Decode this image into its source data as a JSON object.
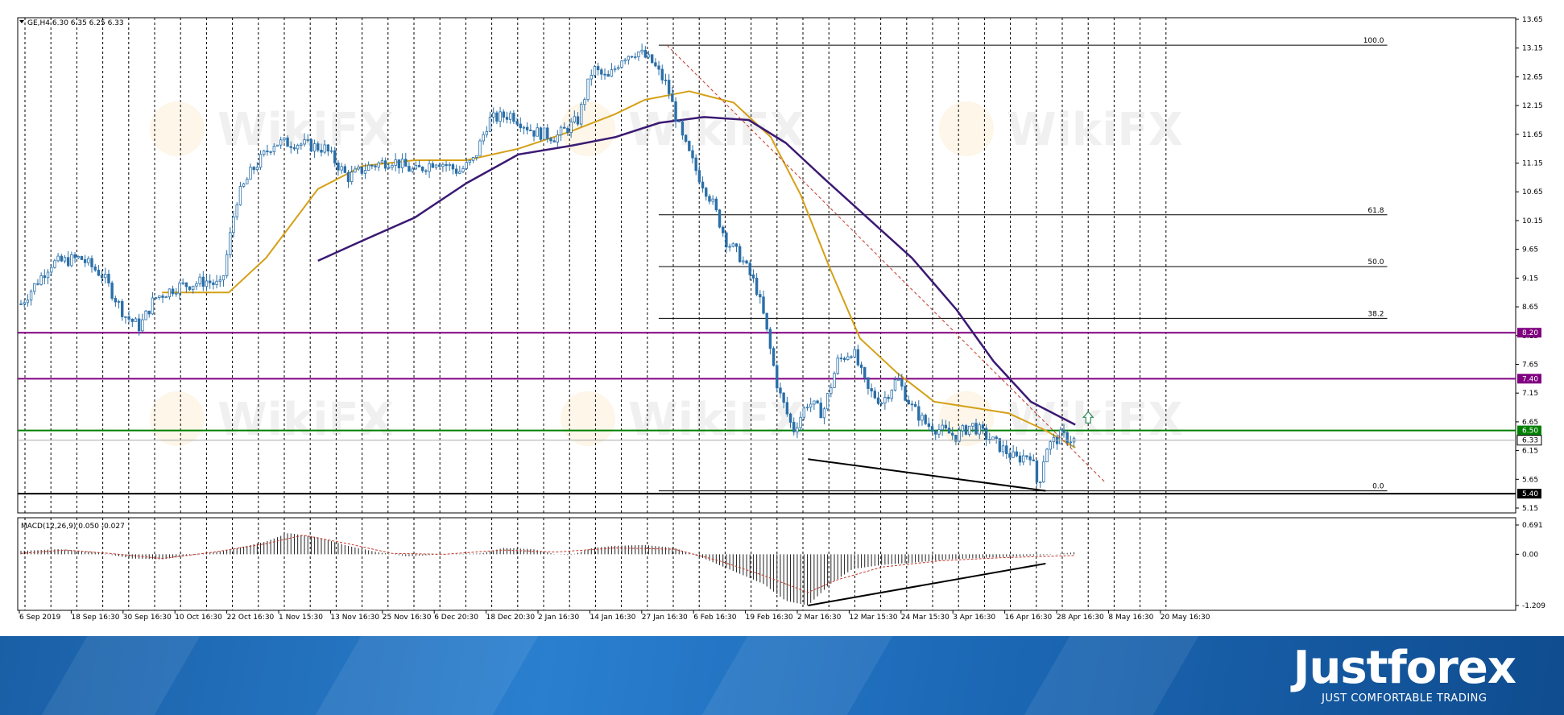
{
  "chart_data": {
    "type": "candlestick",
    "symbol_header": "GE,H4",
    "ohlc_readout": "6.30 6.35 6.25 6.33",
    "x_tick_labels": [
      "6 Sep 2019",
      "18 Sep 16:30",
      "30 Sep 16:30",
      "10 Oct 16:30",
      "22 Oct 16:30",
      "1 Nov 15:30",
      "13 Nov 16:30",
      "25 Nov 16:30",
      "6 Dec 20:30",
      "18 Dec 20:30",
      "2 Jan 16:30",
      "14 Jan 16:30",
      "27 Jan 16:30",
      "6 Feb 16:30",
      "19 Feb 16:30",
      "2 Mar 16:30",
      "12 Mar 15:30",
      "24 Mar 15:30",
      "3 Apr 16:30",
      "16 Apr 16:30",
      "28 Apr 16:30",
      "8 May 16:30",
      "20 May 16:30"
    ],
    "y_ticks": [
      "13.65",
      "13.15",
      "12.65",
      "12.15",
      "11.65",
      "11.15",
      "10.65",
      "10.15",
      "9.65",
      "9.15",
      "8.65",
      "8.15",
      "7.65",
      "7.15",
      "6.65",
      "6.15",
      "5.65",
      "5.15"
    ],
    "ylim": [
      5.15,
      13.65
    ],
    "price_close_path": [
      [
        0,
        8.7
      ],
      [
        4,
        9.4
      ],
      [
        8,
        9.5
      ],
      [
        11,
        9.2
      ],
      [
        14,
        8.5
      ],
      [
        16,
        8.3
      ],
      [
        18,
        8.8
      ],
      [
        21,
        9.0
      ],
      [
        25,
        9.1
      ],
      [
        27,
        9.0
      ],
      [
        29,
        10.5
      ],
      [
        31,
        11.0
      ],
      [
        34,
        11.5
      ],
      [
        37,
        11.5
      ],
      [
        41,
        11.4
      ],
      [
        44,
        10.9
      ],
      [
        47,
        11.1
      ],
      [
        50,
        11.2
      ],
      [
        53,
        11.0
      ],
      [
        56,
        11.2
      ],
      [
        59,
        11.0
      ],
      [
        61,
        11.2
      ],
      [
        63,
        11.9
      ],
      [
        66,
        12.0
      ],
      [
        69,
        11.7
      ],
      [
        72,
        11.6
      ],
      [
        75,
        11.9
      ],
      [
        77,
        12.8
      ],
      [
        79,
        12.6
      ],
      [
        81,
        13.0
      ],
      [
        83,
        13.1
      ],
      [
        85,
        12.9
      ],
      [
        87,
        12.5
      ],
      [
        89,
        11.6
      ],
      [
        91,
        11.0
      ],
      [
        93,
        10.5
      ],
      [
        95,
        9.8
      ],
      [
        97,
        9.5
      ],
      [
        99,
        9.0
      ],
      [
        100,
        8.5
      ],
      [
        102,
        7.2
      ],
      [
        104,
        6.5
      ],
      [
        106,
        7.0
      ],
      [
        108,
        6.8
      ],
      [
        110,
        7.7
      ],
      [
        112,
        7.9
      ],
      [
        114,
        7.2
      ],
      [
        116,
        7.0
      ],
      [
        118,
        7.4
      ],
      [
        120,
        6.9
      ],
      [
        122,
        6.6
      ],
      [
        124,
        6.5
      ],
      [
        126,
        6.4
      ],
      [
        128,
        6.6
      ],
      [
        130,
        6.4
      ],
      [
        132,
        6.2
      ],
      [
        134,
        6.0
      ],
      [
        136,
        6.1
      ],
      [
        137,
        5.5
      ],
      [
        138,
        6.2
      ],
      [
        140,
        6.4
      ],
      [
        142,
        6.33
      ]
    ],
    "series": [
      {
        "values": [
          [
            19,
            8.9
          ],
          [
            28,
            8.9
          ],
          [
            33,
            9.5
          ],
          [
            40,
            10.7
          ],
          [
            46,
            11.1
          ],
          [
            53,
            11.2
          ],
          [
            60,
            11.2
          ],
          [
            67,
            11.4
          ],
          [
            74,
            11.7
          ],
          [
            80,
            12.0
          ],
          [
            84,
            12.25
          ],
          [
            90,
            12.4
          ],
          [
            96,
            12.2
          ],
          [
            101,
            11.6
          ],
          [
            105,
            10.6
          ],
          [
            109,
            9.3
          ],
          [
            113,
            8.1
          ],
          [
            118,
            7.5
          ],
          [
            123,
            7.0
          ],
          [
            128,
            6.9
          ],
          [
            133,
            6.8
          ],
          [
            138,
            6.5
          ],
          [
            142,
            6.2
          ]
        ]
      },
      {
        "values": [
          [
            40,
            9.45
          ],
          [
            46,
            9.8
          ],
          [
            53,
            10.2
          ],
          [
            60,
            10.8
          ],
          [
            67,
            11.3
          ],
          [
            74,
            11.45
          ],
          [
            80,
            11.6
          ],
          [
            86,
            11.85
          ],
          [
            92,
            11.95
          ],
          [
            98,
            11.9
          ],
          [
            103,
            11.5
          ],
          [
            108,
            10.9
          ],
          [
            114,
            10.2
          ],
          [
            120,
            9.5
          ],
          [
            126,
            8.6
          ],
          [
            131,
            7.7
          ],
          [
            136,
            7.0
          ],
          [
            142,
            6.6
          ]
        ]
      }
    ],
    "horizontal_levels": [
      {
        "value": 8.2,
        "label": "8.20",
        "color": "#800080"
      },
      {
        "value": 7.4,
        "label": "7.40",
        "color": "#800080"
      },
      {
        "value": 6.5,
        "label": "6.50",
        "color": "#008000"
      },
      {
        "value": 5.4,
        "label": "5.40",
        "color": "#000000"
      }
    ],
    "current_price": {
      "value": 6.33,
      "label": "6.33"
    },
    "fibonacci": {
      "levels": [
        {
          "label": "100.0",
          "value": 13.2
        },
        {
          "label": "61.8",
          "value": 10.25
        },
        {
          "label": "50.0",
          "value": 9.35
        },
        {
          "label": "38.2",
          "value": 8.45
        },
        {
          "label": "0.0",
          "value": 5.45
        }
      ],
      "from_x": 86,
      "to_x": 184
    },
    "trendlines": {
      "price": [
        [
          106,
          6.0
        ],
        [
          138,
          5.45
        ]
      ],
      "macd": [
        [
          106,
          -1.209
        ],
        [
          138,
          -0.22
        ]
      ],
      "descending": [
        [
          87,
          13.2
        ],
        [
          146,
          5.6
        ]
      ]
    },
    "macd": {
      "label": "MACD(12,26,9) 0.050 -0.027",
      "y_ticks": [
        "0.691",
        "0.00",
        "-1.209"
      ],
      "ylim": [
        -1.209,
        0.691
      ],
      "histogram": [
        [
          0,
          0.08
        ],
        [
          5,
          0.12
        ],
        [
          10,
          0.05
        ],
        [
          15,
          -0.1
        ],
        [
          19,
          -0.12
        ],
        [
          24,
          0.0
        ],
        [
          28,
          0.1
        ],
        [
          33,
          0.3
        ],
        [
          36,
          0.5
        ],
        [
          40,
          0.4
        ],
        [
          44,
          0.2
        ],
        [
          48,
          0.05
        ],
        [
          52,
          -0.05
        ],
        [
          57,
          0.0
        ],
        [
          62,
          0.02
        ],
        [
          65,
          0.15
        ],
        [
          69,
          0.12
        ],
        [
          72,
          0.0
        ],
        [
          74,
          -0.02
        ],
        [
          77,
          0.15
        ],
        [
          80,
          0.2
        ],
        [
          84,
          0.22
        ],
        [
          88,
          0.15
        ],
        [
          92,
          -0.1
        ],
        [
          96,
          -0.4
        ],
        [
          100,
          -0.7
        ],
        [
          103,
          -1.1
        ],
        [
          106,
          -1.209
        ],
        [
          109,
          -0.7
        ],
        [
          112,
          -0.35
        ],
        [
          116,
          -0.25
        ],
        [
          120,
          -0.2
        ],
        [
          125,
          -0.12
        ],
        [
          130,
          -0.08
        ],
        [
          134,
          -0.05
        ],
        [
          138,
          -0.02
        ],
        [
          142,
          0.05
        ]
      ],
      "signal": [
        [
          0,
          0.02
        ],
        [
          6,
          0.1
        ],
        [
          12,
          0.02
        ],
        [
          19,
          -0.1
        ],
        [
          26,
          0.05
        ],
        [
          33,
          0.25
        ],
        [
          38,
          0.45
        ],
        [
          44,
          0.25
        ],
        [
          50,
          0.02
        ],
        [
          57,
          0.0
        ],
        [
          65,
          0.1
        ],
        [
          72,
          0.05
        ],
        [
          80,
          0.15
        ],
        [
          88,
          0.12
        ],
        [
          94,
          -0.15
        ],
        [
          100,
          -0.5
        ],
        [
          106,
          -0.9
        ],
        [
          110,
          -0.6
        ],
        [
          116,
          -0.3
        ],
        [
          124,
          -0.15
        ],
        [
          132,
          -0.08
        ],
        [
          138,
          -0.05
        ],
        [
          142,
          -0.03
        ]
      ]
    }
  },
  "watermark": {
    "text": "WikiFX"
  },
  "brand": {
    "name": "Justforex",
    "tagline": "JUST COMFORTABLE TRADING"
  }
}
